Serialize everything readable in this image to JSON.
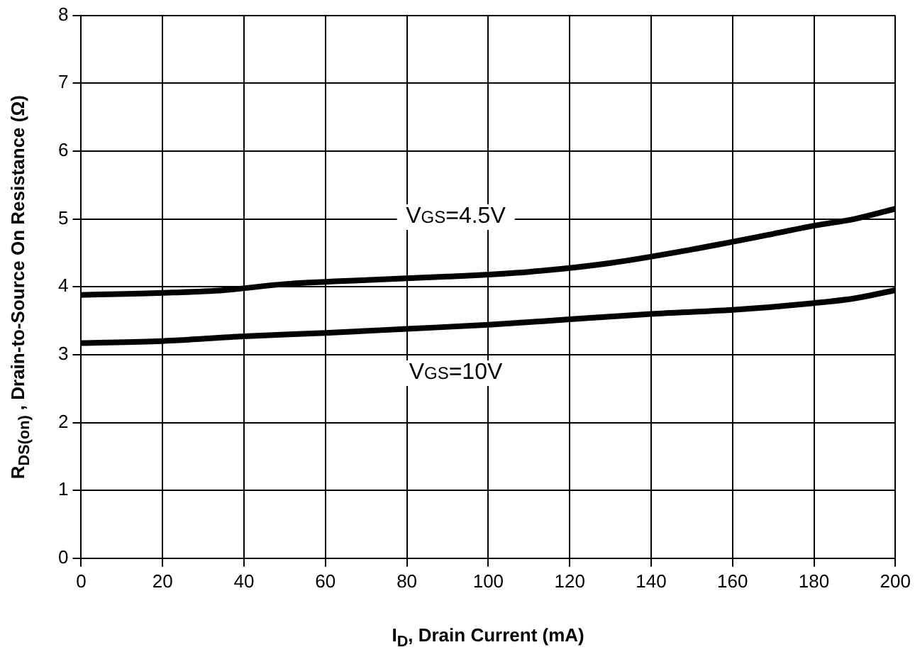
{
  "chart_data": {
    "type": "line",
    "xlabel": "I$_{D}$, Drain Current (mA)",
    "ylabel": "R$_{DS(on)}$ , Drain-to-Source On Resistance (Ω)",
    "xlim": [
      0,
      200
    ],
    "xticks": [
      0,
      20,
      40,
      60,
      80,
      100,
      120,
      140,
      160,
      180,
      200
    ],
    "ylim": [
      0,
      8
    ],
    "yticks": [
      0,
      1,
      2,
      3,
      4,
      5,
      6,
      7,
      8
    ],
    "grid": true,
    "legend": false,
    "marker": "none",
    "line_style": "solid",
    "series": [
      {
        "name": "V$_{GS}$=4.5V",
        "color": "#000000",
        "x": [
          0,
          20,
          35,
          50,
          70,
          90,
          110,
          130,
          150,
          170,
          180,
          190,
          200
        ],
        "values": [
          3.88,
          3.91,
          3.95,
          4.04,
          4.1,
          4.15,
          4.22,
          4.35,
          4.55,
          4.78,
          4.9,
          5.0,
          5.15
        ]
      },
      {
        "name": "V$_{GS}$=10V",
        "color": "#000000",
        "x": [
          0,
          20,
          40,
          60,
          80,
          100,
          120,
          140,
          160,
          180,
          190,
          200
        ],
        "values": [
          3.17,
          3.2,
          3.27,
          3.32,
          3.38,
          3.44,
          3.52,
          3.6,
          3.66,
          3.76,
          3.83,
          3.95
        ]
      }
    ]
  }
}
